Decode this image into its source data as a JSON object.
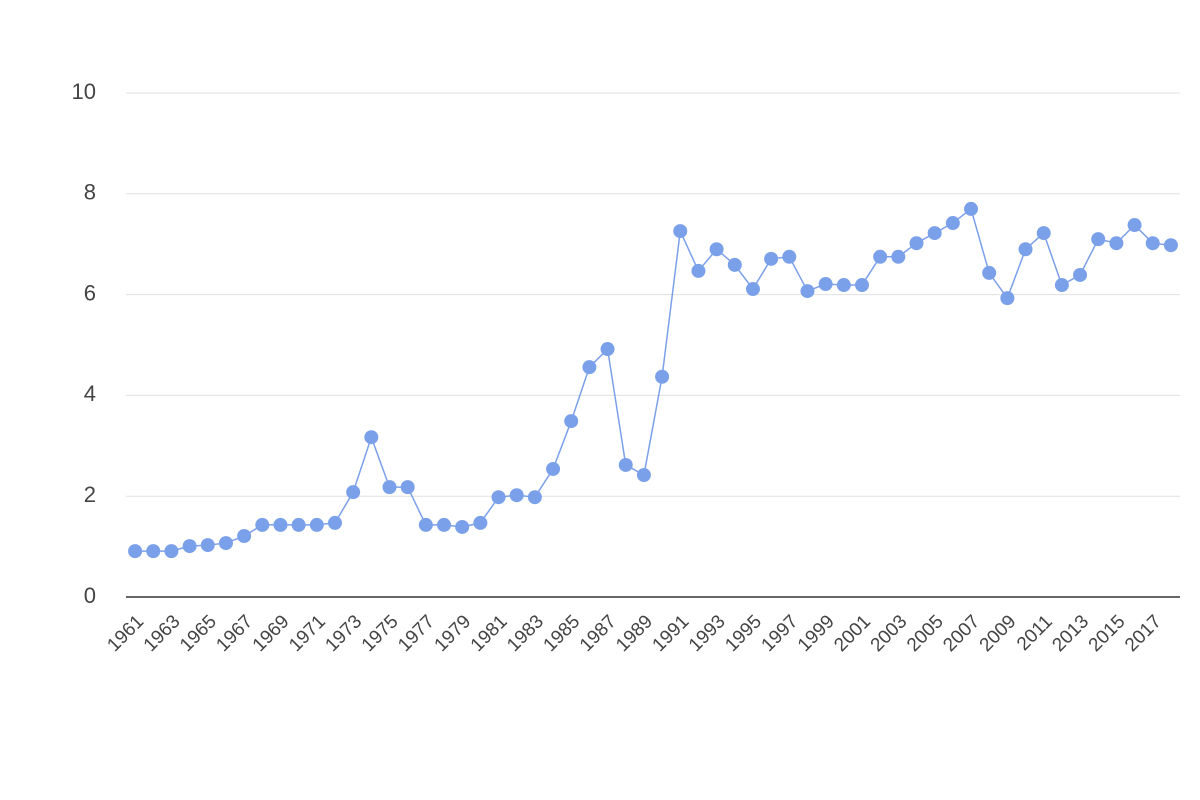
{
  "chart_data": {
    "type": "line",
    "categories": [
      "1961",
      null,
      "1963",
      null,
      "1965",
      null,
      "1967",
      null,
      "1969",
      null,
      "1971",
      null,
      "1973",
      null,
      "1975",
      null,
      "1977",
      null,
      "1979",
      null,
      "1981",
      null,
      "1983",
      null,
      "1985",
      null,
      "1987",
      null,
      "1989",
      null,
      "1991",
      null,
      "1993",
      null,
      "1995",
      null,
      "1997",
      null,
      "1999",
      null,
      "2001",
      null,
      "2003",
      null,
      "2005",
      null,
      "2007",
      null,
      "2009",
      null,
      "2011",
      null,
      "2013",
      null,
      "2015",
      null,
      "2017",
      null
    ],
    "values": [
      0.91,
      0.91,
      0.91,
      1.01,
      1.03,
      1.07,
      1.21,
      1.43,
      1.43,
      1.43,
      1.43,
      1.47,
      2.08,
      3.17,
      2.18,
      2.18,
      1.43,
      1.43,
      1.39,
      1.47,
      1.98,
      2.02,
      1.98,
      2.54,
      3.49,
      4.56,
      4.92,
      2.62,
      2.42,
      4.37,
      7.26,
      6.47,
      6.9,
      6.59,
      6.11,
      6.71,
      6.75,
      6.07,
      6.21,
      6.19,
      6.19,
      6.75,
      6.75,
      7.02,
      7.22,
      7.42,
      7.7,
      6.43,
      5.93,
      6.9,
      7.22,
      6.19,
      6.39,
      7.1,
      7.02,
      7.38,
      7.02,
      6.98
    ],
    "color": "#7ba0ea",
    "ylim": [
      0,
      10
    ],
    "yticks": [
      0,
      2,
      4,
      6,
      8,
      10
    ],
    "grid": true,
    "markers": true
  }
}
